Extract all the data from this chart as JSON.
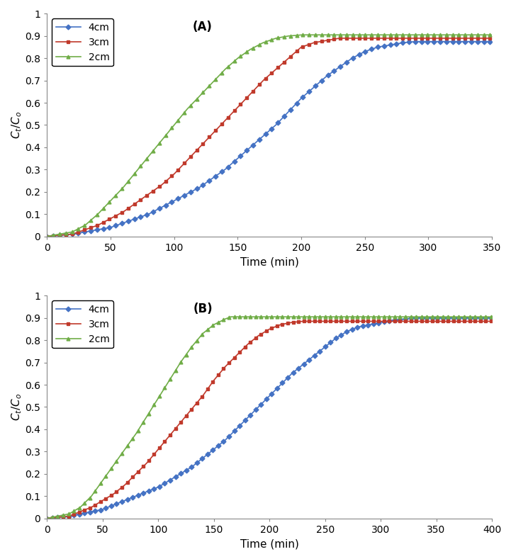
{
  "panel_A": {
    "label": "(A)",
    "xlim": [
      0,
      350
    ],
    "ylim": [
      0,
      1
    ],
    "xticks": [
      0,
      50,
      100,
      150,
      200,
      250,
      300,
      350
    ],
    "yticks": [
      0,
      0.1,
      0.2,
      0.3,
      0.4,
      0.5,
      0.6,
      0.7,
      0.8,
      0.9,
      1
    ],
    "xlabel": "Time (min)",
    "ylabel": "C_t/C_o",
    "series": [
      {
        "label": "4cm",
        "color": "#4472C4",
        "marker": "D",
        "t_points": [
          0,
          10,
          20,
          30,
          40,
          50,
          60,
          70,
          80,
          90,
          100,
          110,
          120,
          130,
          140,
          150,
          160,
          170,
          180,
          190,
          200,
          210,
          220,
          230,
          240,
          250,
          260,
          270,
          280,
          290,
          300,
          305
        ],
        "y_points": [
          0,
          0.005,
          0.01,
          0.02,
          0.03,
          0.04,
          0.06,
          0.08,
          0.1,
          0.13,
          0.16,
          0.19,
          0.22,
          0.26,
          0.3,
          0.35,
          0.4,
          0.45,
          0.5,
          0.56,
          0.62,
          0.67,
          0.72,
          0.76,
          0.8,
          0.83,
          0.85,
          0.86,
          0.87,
          0.875,
          0.875,
          0.875
        ]
      },
      {
        "label": "3cm",
        "color": "#C0392B",
        "marker": "s",
        "t_points": [
          0,
          10,
          20,
          30,
          40,
          50,
          60,
          70,
          80,
          90,
          100,
          110,
          120,
          130,
          140,
          150,
          160,
          170,
          180,
          190,
          200,
          210,
          220,
          230,
          240,
          250,
          260
        ],
        "y_points": [
          0,
          0.005,
          0.01,
          0.03,
          0.05,
          0.08,
          0.11,
          0.15,
          0.19,
          0.23,
          0.28,
          0.34,
          0.4,
          0.46,
          0.52,
          0.58,
          0.64,
          0.7,
          0.75,
          0.8,
          0.85,
          0.87,
          0.88,
          0.89,
          0.89,
          0.89,
          0.89
        ]
      },
      {
        "label": "2cm",
        "color": "#70AD47",
        "marker": "^",
        "t_points": [
          0,
          10,
          20,
          30,
          40,
          50,
          60,
          70,
          80,
          90,
          100,
          110,
          120,
          130,
          140,
          150,
          160,
          170,
          180,
          190,
          200,
          210,
          215
        ],
        "y_points": [
          0,
          0.01,
          0.02,
          0.05,
          0.1,
          0.16,
          0.22,
          0.29,
          0.36,
          0.43,
          0.5,
          0.57,
          0.63,
          0.69,
          0.75,
          0.8,
          0.84,
          0.87,
          0.89,
          0.9,
          0.905,
          0.905,
          0.905
        ]
      }
    ]
  },
  "panel_B": {
    "label": "(B)",
    "xlim": [
      0,
      400
    ],
    "ylim": [
      0,
      1
    ],
    "xticks": [
      0,
      50,
      100,
      150,
      200,
      250,
      300,
      350,
      400
    ],
    "yticks": [
      0,
      0.1,
      0.2,
      0.3,
      0.4,
      0.5,
      0.6,
      0.7,
      0.8,
      0.9,
      1
    ],
    "xlabel": "Time (min)",
    "ylabel": "C_t/C_o",
    "series": [
      {
        "label": "4cm",
        "color": "#4472C4",
        "marker": "D",
        "t_points": [
          0,
          10,
          20,
          30,
          40,
          50,
          60,
          70,
          80,
          90,
          100,
          110,
          120,
          130,
          140,
          150,
          160,
          170,
          180,
          190,
          200,
          210,
          220,
          230,
          240,
          250,
          260,
          270,
          280,
          290,
          300,
          310,
          320,
          330,
          340,
          350,
          360
        ],
        "y_points": [
          0,
          0.005,
          0.01,
          0.02,
          0.03,
          0.04,
          0.06,
          0.08,
          0.1,
          0.12,
          0.14,
          0.17,
          0.2,
          0.23,
          0.27,
          0.31,
          0.35,
          0.4,
          0.45,
          0.5,
          0.55,
          0.6,
          0.65,
          0.69,
          0.73,
          0.77,
          0.81,
          0.84,
          0.86,
          0.87,
          0.88,
          0.89,
          0.895,
          0.9,
          0.9,
          0.9,
          0.9
        ]
      },
      {
        "label": "3cm",
        "color": "#C0392B",
        "marker": "s",
        "t_points": [
          0,
          10,
          20,
          30,
          40,
          50,
          60,
          70,
          80,
          90,
          100,
          110,
          120,
          130,
          140,
          150,
          160,
          170,
          180,
          190,
          200,
          210,
          220,
          230,
          250
        ],
        "y_points": [
          0,
          0.005,
          0.01,
          0.03,
          0.05,
          0.08,
          0.11,
          0.15,
          0.2,
          0.25,
          0.31,
          0.37,
          0.43,
          0.49,
          0.55,
          0.62,
          0.68,
          0.73,
          0.78,
          0.82,
          0.85,
          0.87,
          0.88,
          0.885,
          0.885
        ]
      },
      {
        "label": "2cm",
        "color": "#70AD47",
        "marker": "^",
        "t_points": [
          0,
          10,
          20,
          30,
          40,
          50,
          60,
          70,
          80,
          90,
          100,
          110,
          120,
          130,
          140,
          150,
          160,
          165
        ],
        "y_points": [
          0,
          0.01,
          0.02,
          0.05,
          0.1,
          0.17,
          0.24,
          0.31,
          0.38,
          0.46,
          0.54,
          0.62,
          0.7,
          0.77,
          0.83,
          0.87,
          0.895,
          0.905
        ]
      }
    ]
  },
  "legend_loc": "upper left",
  "marker_size": 3.5,
  "line_width": 1.2,
  "font_size": 10,
  "label_font_size": 11,
  "tick_font_size": 10
}
